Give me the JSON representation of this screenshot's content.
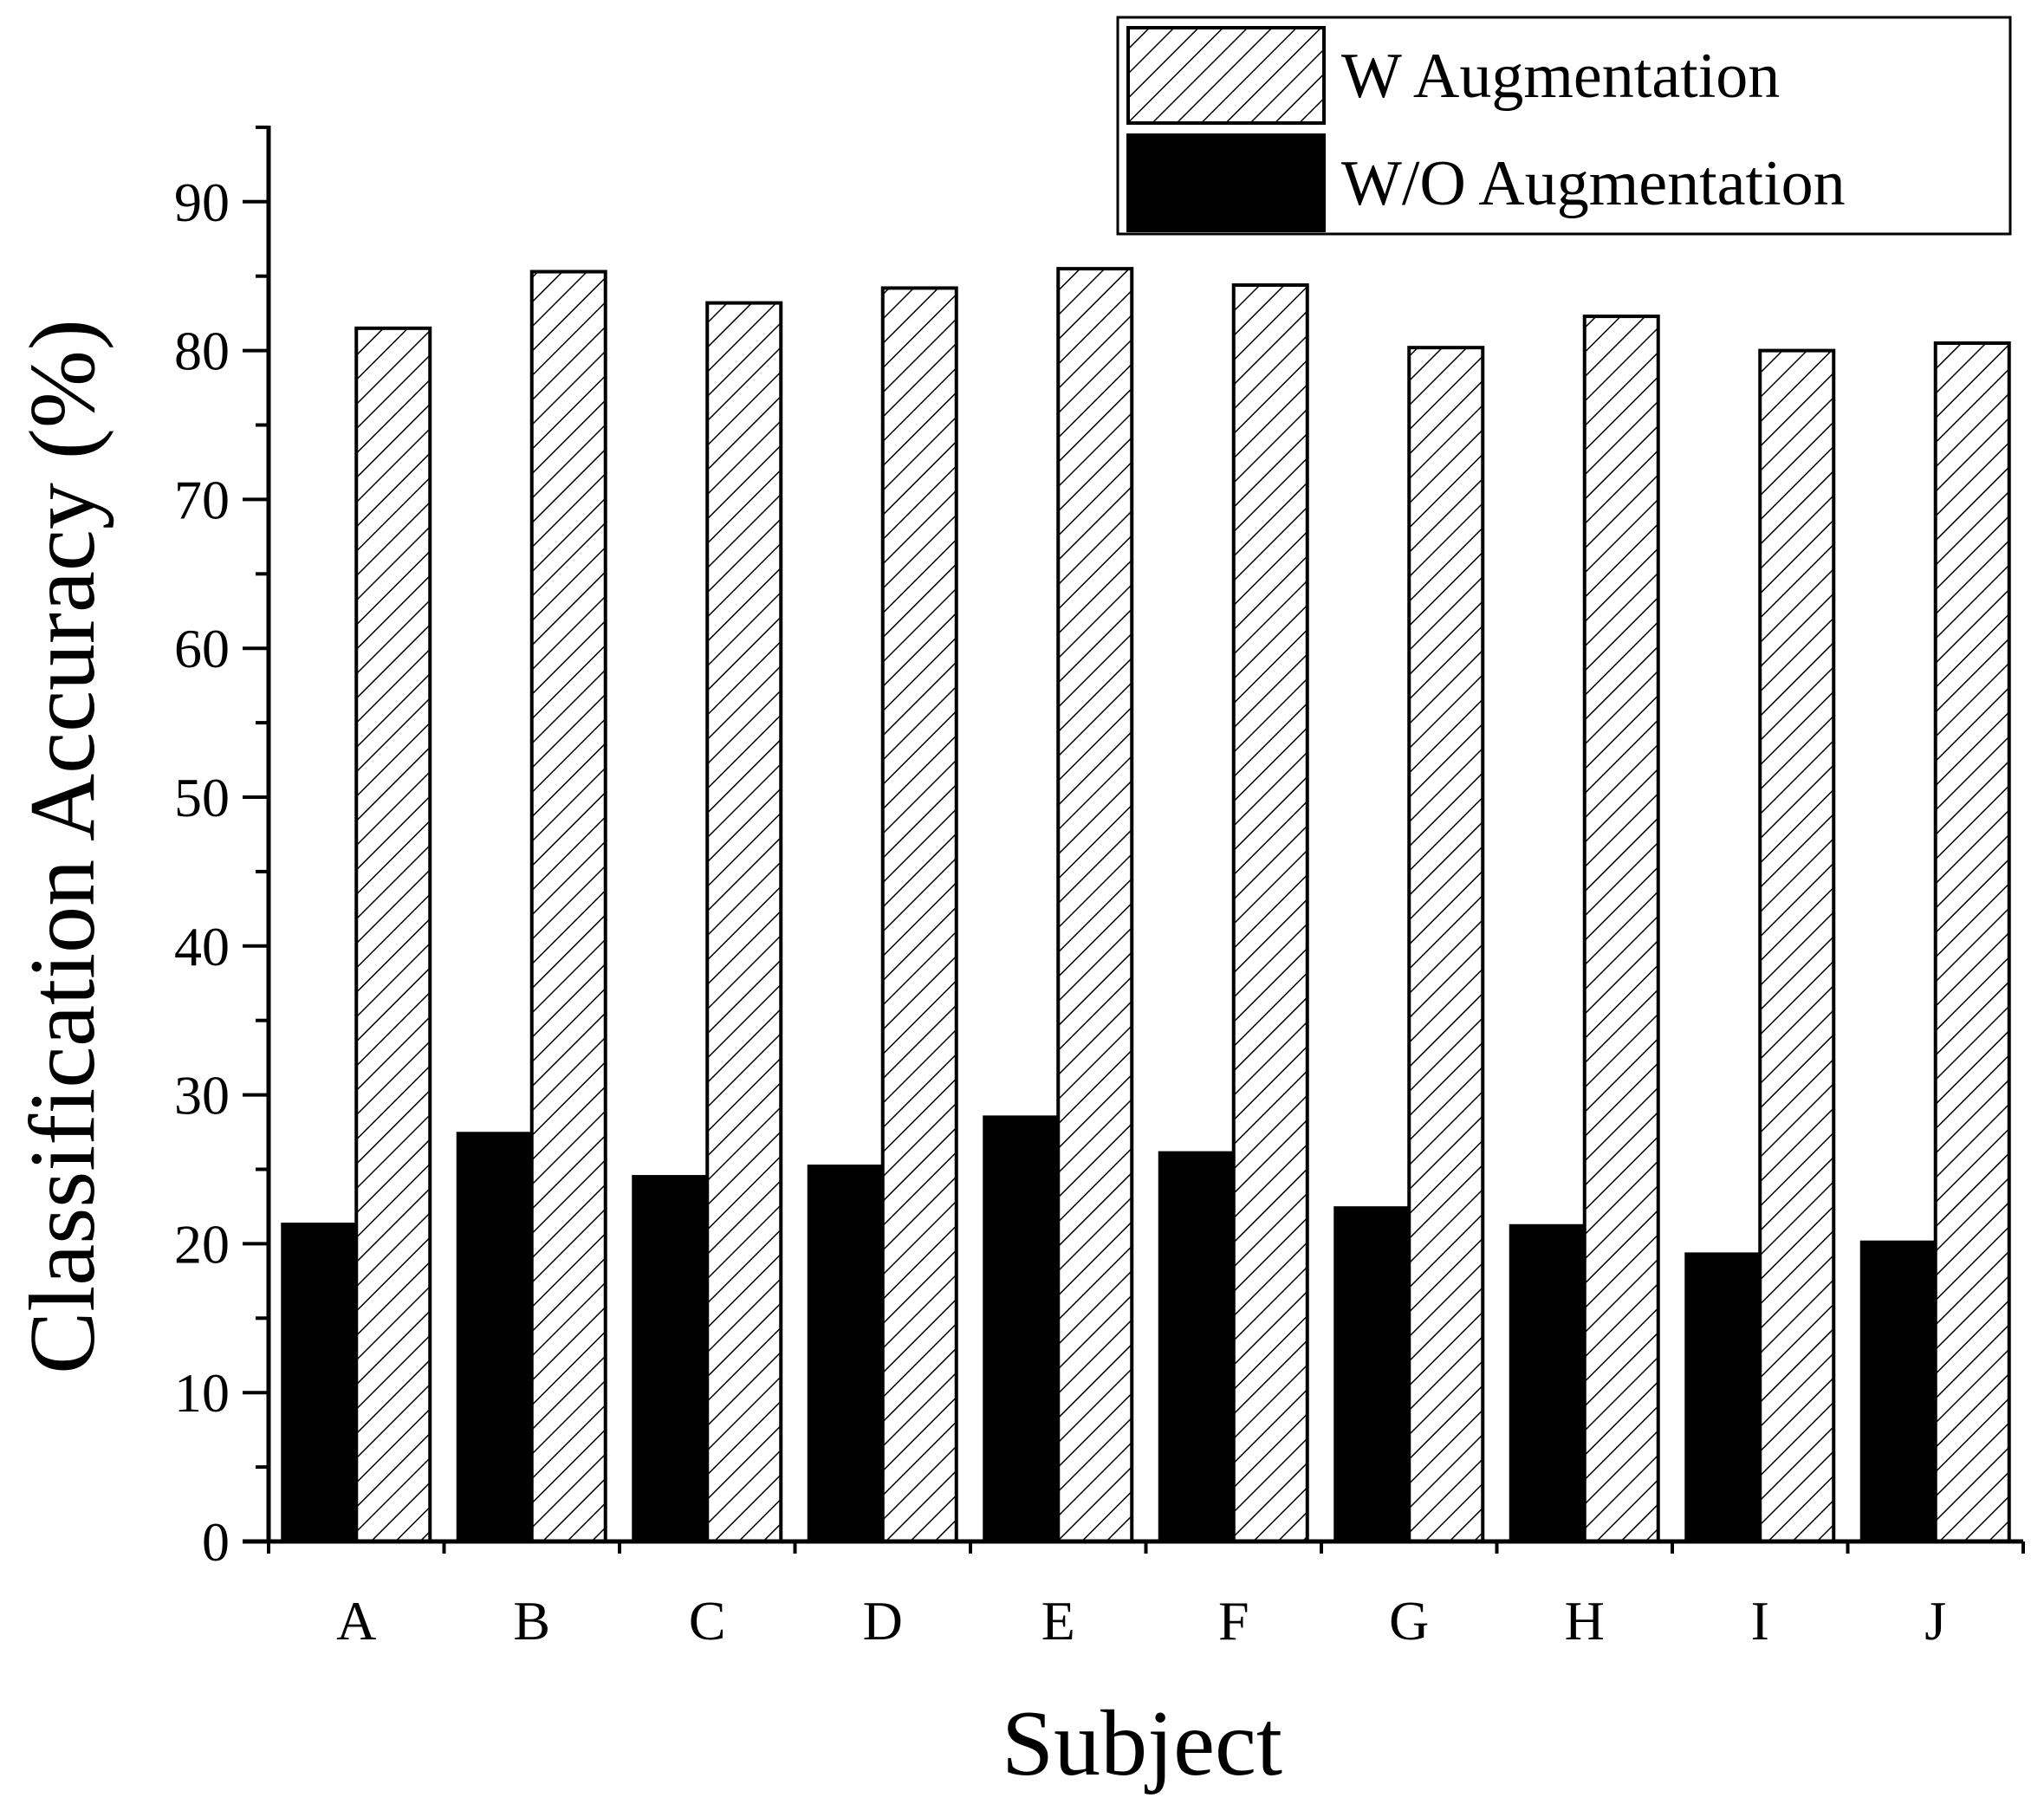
{
  "chart_data": {
    "type": "bar",
    "xlabel": "Subject",
    "ylabel": "Classification Accuracy (%)",
    "ylim": [
      0,
      95
    ],
    "yticks": [
      0,
      10,
      20,
      30,
      40,
      50,
      60,
      70,
      80,
      90
    ],
    "categories": [
      "A",
      "B",
      "C",
      "D",
      "E",
      "F",
      "G",
      "H",
      "I",
      "J"
    ],
    "series": [
      {
        "name": "W/O Augmentation",
        "fill": "solid",
        "color": "#000000",
        "values": [
          21.3,
          27.4,
          24.5,
          25.2,
          28.5,
          26.1,
          22.4,
          21.2,
          19.3,
          20.1
        ]
      },
      {
        "name": "W Augmentation",
        "fill": "hatched",
        "color": "#000000",
        "values": [
          81.5,
          85.3,
          83.2,
          84.2,
          85.5,
          84.4,
          80.2,
          82.3,
          80.0,
          80.5
        ]
      }
    ],
    "legend": {
      "placement": "top-right",
      "order": [
        "W Augmentation",
        "W/O Augmentation"
      ]
    },
    "grid": false
  }
}
